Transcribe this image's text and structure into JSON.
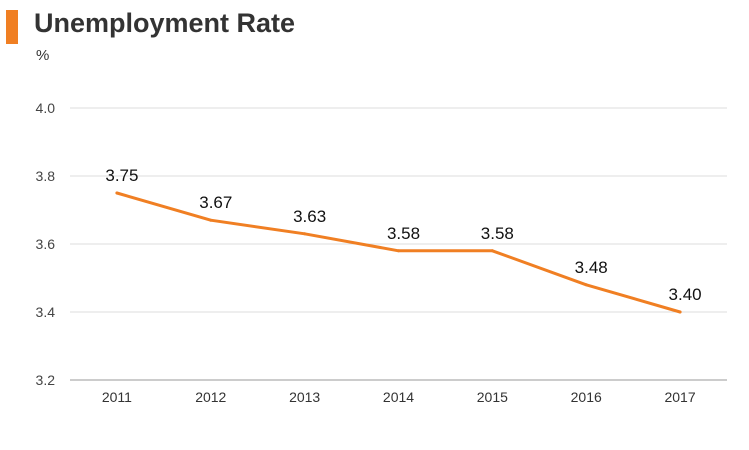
{
  "header": {
    "title": "Unemployment Rate",
    "accent_color": "#F07F23"
  },
  "chart_data": {
    "type": "line",
    "title": "Unemployment Rate",
    "unit": "%",
    "categories": [
      "2011",
      "2012",
      "2013",
      "2014",
      "2015",
      "2016",
      "2017"
    ],
    "series": [
      {
        "values": [
          3.75,
          3.67,
          3.63,
          3.58,
          3.58,
          3.48,
          3.4
        ],
        "color": "#F07F23"
      }
    ],
    "data_labels": [
      "3.75",
      "3.67",
      "3.63",
      "3.58",
      "3.58",
      "3.48",
      "3.40"
    ],
    "y_ticks": [
      "3.2",
      "3.4",
      "3.6",
      "3.8",
      "4.0"
    ],
    "ylim": [
      3.2,
      4.0
    ],
    "grid": true,
    "legend": false
  }
}
